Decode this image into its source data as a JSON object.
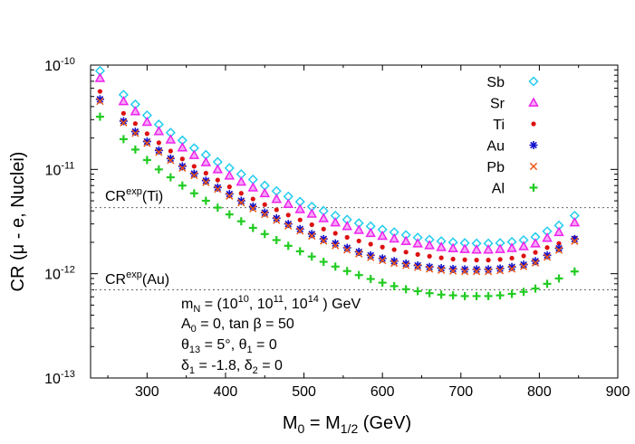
{
  "chart_data": {
    "type": "scatter",
    "xlabel": "M_0 = M_1/2 (GeV)",
    "ylabel": "CR (μ - e, Nuclei)",
    "xlim": [
      228,
      900
    ],
    "ylim": [
      1e-13,
      1e-10
    ],
    "yscale": "log",
    "xticks": [
      300,
      400,
      500,
      600,
      700,
      800,
      900
    ],
    "yticks": [
      1e-13,
      1e-12,
      1e-11,
      1e-10
    ],
    "grid": false,
    "legend_position": "top-right",
    "x": [
      240,
      270,
      285,
      300,
      315,
      330,
      345,
      360,
      375,
      390,
      405,
      420,
      435,
      450,
      465,
      480,
      495,
      510,
      525,
      540,
      555,
      570,
      585,
      600,
      615,
      630,
      645,
      660,
      675,
      690,
      705,
      720,
      735,
      750,
      765,
      780,
      795,
      810,
      825,
      845
    ],
    "series": [
      {
        "name": "Sb",
        "marker": "diamond",
        "color": "#22ccee",
        "values": [
          8.8e-11,
          5.2e-11,
          4.2e-11,
          3.3e-11,
          2.7e-11,
          2.25e-11,
          1.9e-11,
          1.6e-11,
          1.38e-11,
          1.18e-11,
          1.03e-11,
          9e-12,
          8e-12,
          7e-12,
          6.2e-12,
          5.5e-12,
          4.9e-12,
          4.4e-12,
          4e-12,
          3.6e-12,
          3.3e-12,
          3.05e-12,
          2.85e-12,
          2.65e-12,
          2.5e-12,
          2.35e-12,
          2.22e-12,
          2.12e-12,
          2.05e-12,
          2e-12,
          1.97e-12,
          1.95e-12,
          1.95e-12,
          1.97e-12,
          2.02e-12,
          2.1e-12,
          2.25e-12,
          2.55e-12,
          2.9e-12,
          3.6e-12
        ]
      },
      {
        "name": "Sr",
        "marker": "triangle",
        "color": "#ee22ee",
        "values": [
          7.5e-11,
          4.5e-11,
          3.6e-11,
          2.85e-11,
          2.32e-11,
          1.93e-11,
          1.62e-11,
          1.37e-11,
          1.17e-11,
          1e-11,
          8.7e-12,
          7.6e-12,
          6.7e-12,
          5.9e-12,
          5.2e-12,
          4.65e-12,
          4.15e-12,
          3.75e-12,
          3.4e-12,
          3.1e-12,
          2.85e-12,
          2.62e-12,
          2.45e-12,
          2.3e-12,
          2.17e-12,
          2.05e-12,
          1.95e-12,
          1.87e-12,
          1.8e-12,
          1.75e-12,
          1.72e-12,
          1.7e-12,
          1.7e-12,
          1.72e-12,
          1.76e-12,
          1.83e-12,
          1.95e-12,
          2.2e-12,
          2.5e-12,
          3.1e-12
        ]
      },
      {
        "name": "Ti",
        "marker": "dot",
        "color": "#dd1111",
        "values": [
          5.6e-11,
          3.45e-11,
          2.75e-11,
          2.2e-11,
          1.8e-11,
          1.5e-11,
          1.26e-11,
          1.07e-11,
          9.2e-12,
          7.9e-12,
          6.8e-12,
          5.9e-12,
          5.2e-12,
          4.6e-12,
          4.1e-12,
          3.65e-12,
          3.28e-12,
          2.95e-12,
          2.68e-12,
          2.44e-12,
          2.23e-12,
          2.06e-12,
          1.92e-12,
          1.8e-12,
          1.7e-12,
          1.61e-12,
          1.53e-12,
          1.47e-12,
          1.42e-12,
          1.38e-12,
          1.36e-12,
          1.35e-12,
          1.35e-12,
          1.37e-12,
          1.41e-12,
          1.48e-12,
          1.6e-12,
          1.78e-12,
          1.95e-12,
          2.2e-12
        ]
      },
      {
        "name": "Au",
        "marker": "star",
        "color": "#1111cc",
        "values": [
          4.7e-11,
          2.9e-11,
          2.3e-11,
          1.85e-11,
          1.52e-11,
          1.27e-11,
          1.07e-11,
          9.1e-12,
          7.8e-12,
          6.7e-12,
          5.8e-12,
          5e-12,
          4.4e-12,
          3.85e-12,
          3.4e-12,
          3e-12,
          2.68e-12,
          2.4e-12,
          2.15e-12,
          1.95e-12,
          1.77e-12,
          1.62e-12,
          1.5e-12,
          1.4e-12,
          1.32e-12,
          1.25e-12,
          1.2e-12,
          1.16e-12,
          1.13e-12,
          1.11e-12,
          1.1e-12,
          1.1e-12,
          1.1e-12,
          1.12e-12,
          1.16e-12,
          1.22e-12,
          1.32e-12,
          1.5e-12,
          1.75e-12,
          2.15e-12
        ]
      },
      {
        "name": "Pb",
        "marker": "x",
        "color": "#ee5511",
        "values": [
          4.5e-11,
          2.8e-11,
          2.22e-11,
          1.78e-11,
          1.46e-11,
          1.22e-11,
          1.03e-11,
          8.75e-12,
          7.5e-12,
          6.45e-12,
          5.55e-12,
          4.8e-12,
          4.2e-12,
          3.7e-12,
          3.25e-12,
          2.88e-12,
          2.57e-12,
          2.3e-12,
          2.06e-12,
          1.86e-12,
          1.69e-12,
          1.55e-12,
          1.43e-12,
          1.34e-12,
          1.26e-12,
          1.2e-12,
          1.15e-12,
          1.11e-12,
          1.08e-12,
          1.06e-12,
          1.05e-12,
          1.05e-12,
          1.05e-12,
          1.07e-12,
          1.11e-12,
          1.17e-12,
          1.27e-12,
          1.44e-12,
          1.68e-12,
          2.05e-12
        ]
      },
      {
        "name": "Al",
        "marker": "plus",
        "color": "#22cc22",
        "values": [
          3.2e-11,
          1.95e-11,
          1.55e-11,
          1.23e-11,
          1e-11,
          8.4e-12,
          7e-12,
          5.9e-12,
          5e-12,
          4.3e-12,
          3.7e-12,
          3.18e-12,
          2.75e-12,
          2.4e-12,
          2.1e-12,
          1.85e-12,
          1.64e-12,
          1.46e-12,
          1.3e-12,
          1.17e-12,
          1.06e-12,
          9.7e-13,
          8.9e-13,
          8.2e-13,
          7.6e-13,
          7.1e-13,
          6.8e-13,
          6.5e-13,
          6.3e-13,
          6.2e-13,
          6.1e-13,
          6.1e-13,
          6.1e-13,
          6.2e-13,
          6.4e-13,
          6.7e-13,
          7.2e-13,
          8e-13,
          9e-13,
          1.05e-12
        ]
      }
    ],
    "reference_lines": [
      {
        "label": "CR^exp(Ti)",
        "value": 4.3e-12
      },
      {
        "label": "CR^exp(Au)",
        "value": 7e-13
      }
    ],
    "annotations": [
      "m_N = (10^10, 10^11, 10^14 ) GeV",
      "A_0 = 0, tan β = 50",
      "θ_13 = 5°, θ_1 = 0",
      "δ_1 = -1.8, δ_2 = 0"
    ]
  }
}
